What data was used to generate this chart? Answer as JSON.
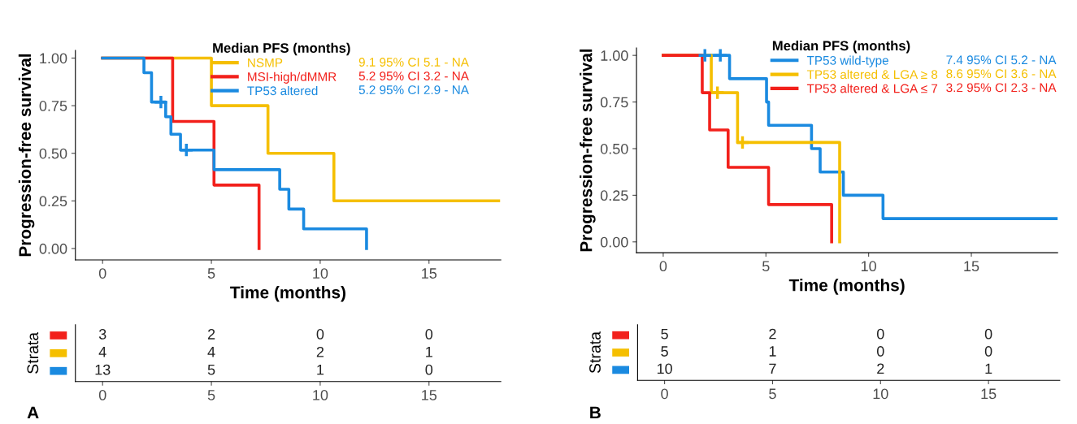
{
  "chart_data": [
    {
      "type": "step",
      "xlabel": "Time (months)",
      "ylabel": "Progression-free survival",
      "legend_title": "Median PFS (months)",
      "legend": "top right",
      "xlim": [
        -1.25,
        18.3
      ],
      "ylim": [
        -0.06,
        1.04
      ],
      "xticks": [
        0,
        5,
        10,
        15
      ],
      "yticks": [
        {
          "value": 0,
          "label": "0.00"
        },
        {
          "value": 0.25,
          "label": "0.25"
        },
        {
          "value": 0.5,
          "label": "0.50"
        },
        {
          "value": 0.75,
          "label": "0.75"
        },
        {
          "value": 1,
          "label": "1.00"
        }
      ],
      "annotations": [
        "9.1 95% CI 5.1 - NA",
        "5.2 95% CI 3.2 - NA",
        "5.2 95% CI 2.9 - NA"
      ],
      "series": [
        {
          "name": "NSMP",
          "color": "#f5bf00",
          "x": [
            0,
            5.0,
            7.6,
            10.63,
            18.2
          ],
          "values": [
            1,
            0.75,
            0.5,
            0.25,
            0.25
          ]
        },
        {
          "name": "MSI-high/dMMR",
          "color": "#f2201b",
          "x": [
            0,
            3.22,
            5.12,
            7.19,
            7.19
          ],
          "values": [
            1,
            0.667,
            0.333,
            0,
            0
          ]
        },
        {
          "name": "TP53 altered",
          "color": "#1a8ae0",
          "x": [
            0,
            1.9,
            2.25,
            2.9,
            3.14,
            3.58,
            5.12,
            8.14,
            8.56,
            9.24,
            12.13,
            12.13
          ],
          "values": [
            1,
            0.923,
            0.769,
            0.692,
            0.6,
            0.517,
            0.414,
            0.311,
            0.207,
            0.103,
            0,
            0
          ]
        },
        {
          "type": "scatter",
          "marker": "cross",
          "color": "#1a8ae0",
          "x": [
            2.68,
            3.85
          ],
          "values": [
            0.769,
            0.517
          ]
        }
      ]
    },
    {
      "type": "heatmap",
      "ylabel": "Strata",
      "categories": [
        "0",
        "5",
        "10",
        "15"
      ],
      "y_categories": [
        null,
        null,
        null
      ],
      "colors": [
        "#f2201b",
        "#f5bf00",
        "#1a8ae0"
      ],
      "data_labels": true,
      "annotations": [
        "A"
      ],
      "cells": [
        [
          3,
          2,
          0,
          0
        ],
        [
          4,
          4,
          2,
          1
        ],
        [
          13,
          5,
          1,
          0
        ]
      ]
    },
    {
      "type": "step",
      "xlabel": "Time (months)",
      "ylabel": "Progression-free survival",
      "legend_title": "Median PFS (months)",
      "legend": "top right",
      "xlim": [
        -1.3,
        19.2
      ],
      "ylim": [
        -0.058,
        1.04
      ],
      "xticks": [
        0,
        5,
        10,
        15
      ],
      "yticks": [
        {
          "value": 0,
          "label": "0.00"
        },
        {
          "value": 0.25,
          "label": "0.25"
        },
        {
          "value": 0.5,
          "label": "0.50"
        },
        {
          "value": 0.75,
          "label": "0.75"
        },
        {
          "value": 1,
          "label": "1.00"
        }
      ],
      "annotations": [
        "7.4 95% CI 5.2 - NA",
        "8.6 95% CI 3.6 - NA",
        "3.2 95% CI 2.3 - NA"
      ],
      "series": [
        {
          "name": "TP53 wild-type",
          "color": "#1a8ae0",
          "x": [
            0,
            3.23,
            5.03,
            5.13,
            7.22,
            7.64,
            8.77,
            10.7,
            19.2
          ],
          "values": [
            1,
            0.875,
            0.75,
            0.625,
            0.5,
            0.375,
            0.25,
            0.125,
            0.125
          ]
        },
        {
          "name": "TP53 altered & LGA ≥ 8",
          "color": "#f5bf00",
          "x": [
            0,
            2.34,
            3.62,
            8.59,
            8.59
          ],
          "values": [
            1,
            0.8,
            0.533,
            0,
            0
          ]
        },
        {
          "name": "TP53 altered & LGA ≤ 7",
          "color": "#f2201b",
          "x": [
            0,
            1.9,
            2.26,
            3.16,
            5.13,
            8.2,
            8.2
          ],
          "values": [
            1,
            0.8,
            0.6,
            0.4,
            0.2,
            0,
            0
          ]
        },
        {
          "type": "scatter",
          "marker": "cross",
          "color": "#1a8ae0",
          "x": [
            2.03,
            2.78
          ],
          "values": [
            1,
            1
          ]
        },
        {
          "type": "scatter",
          "marker": "cross",
          "color": "#f5bf00",
          "x": [
            2.64,
            3.86
          ],
          "values": [
            0.8,
            0.533
          ]
        }
      ]
    },
    {
      "type": "heatmap",
      "ylabel": "Strata",
      "categories": [
        "0",
        "5",
        "10",
        "15"
      ],
      "y_categories": [
        null,
        null,
        null
      ],
      "colors": [
        "#f2201b",
        "#f5bf00",
        "#1a8ae0"
      ],
      "data_labels": true,
      "annotations": [
        "B"
      ],
      "cells": [
        [
          5,
          2,
          0,
          0
        ],
        [
          5,
          1,
          0,
          0
        ],
        [
          10,
          7,
          2,
          1
        ]
      ]
    }
  ]
}
